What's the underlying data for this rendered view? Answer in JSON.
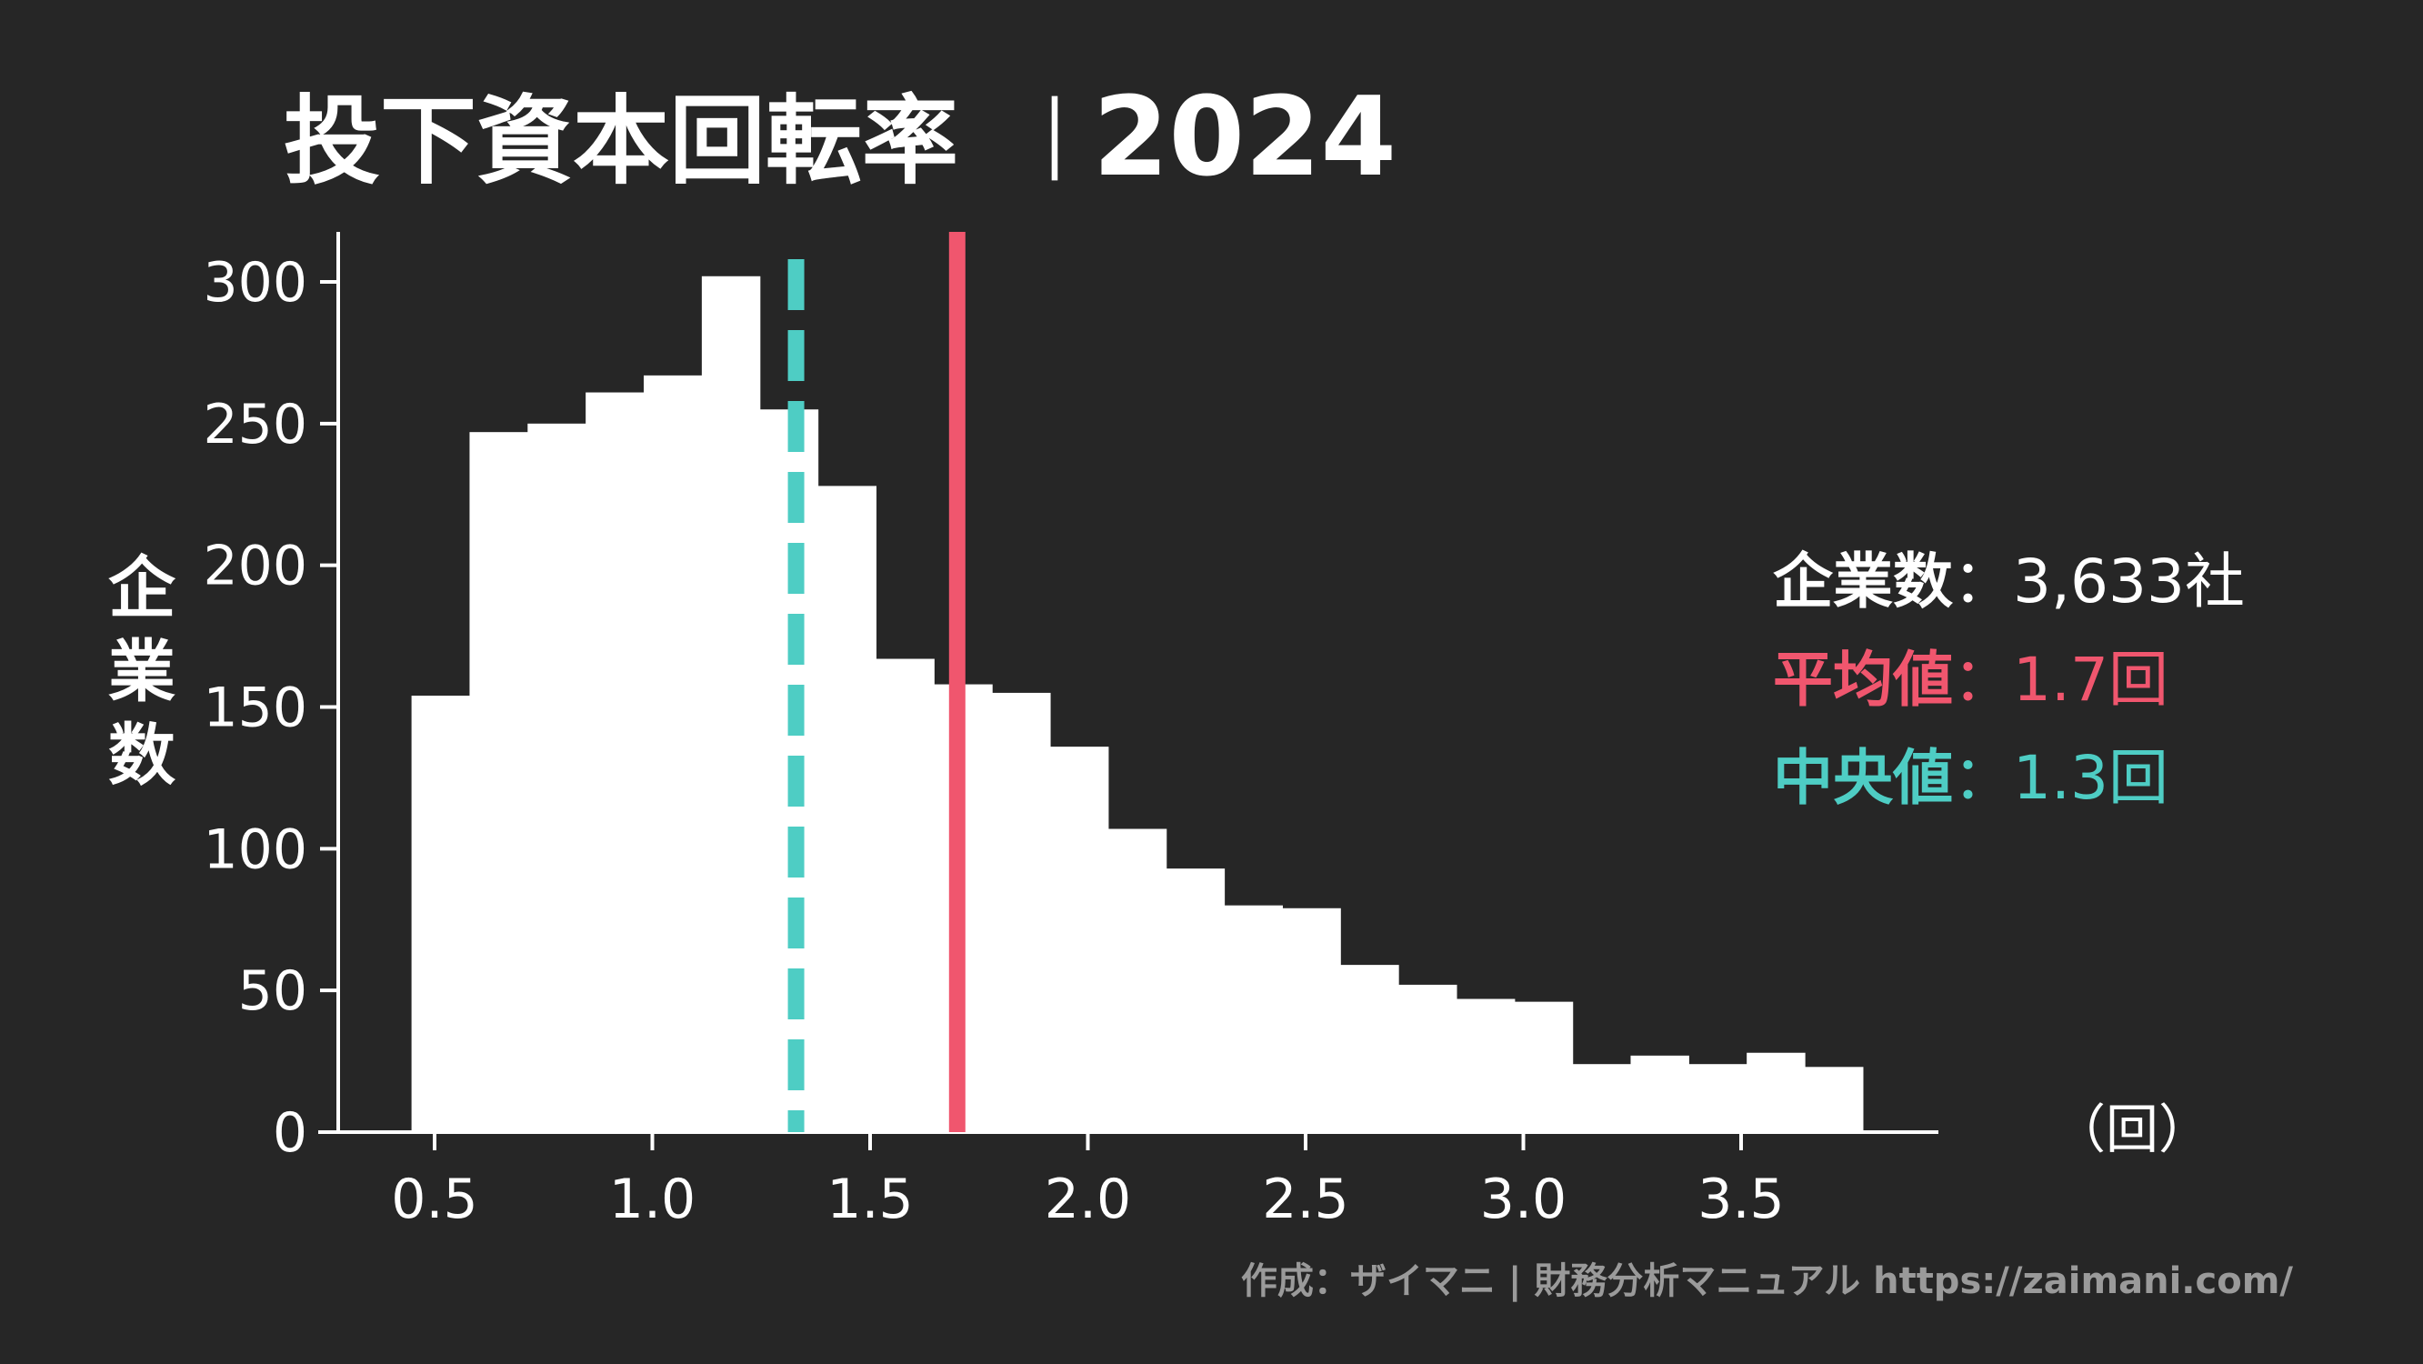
{
  "title": {
    "main": "投下資本回転率",
    "separator": "｜",
    "year": "2024"
  },
  "stats": {
    "count_label": "企業数",
    "count_value": "：3,633社",
    "mean_label": "平均値",
    "mean_value": "：1.7回",
    "median_label": "中央値",
    "median_value": "：1.3回"
  },
  "footer": {
    "credit": "作成：ザイマニ | 財務分析マニュアル https://zaimani.com/"
  },
  "colors": {
    "background": "#262626",
    "bars": "#ffffff",
    "axis": "#ffffff",
    "mean": "#f0566e",
    "median": "#4ecdc4",
    "footer": "#9a9a9a"
  },
  "chart_data": {
    "type": "bar",
    "title": "投下資本回転率｜2024",
    "xlabel": "（回）",
    "ylabel": "企業数",
    "xlim": [
      0.26,
      3.85
    ],
    "ylim": [
      0,
      316
    ],
    "x_ticks": [
      0.5,
      1.0,
      1.5,
      2.0,
      2.5,
      3.0,
      3.5
    ],
    "x_tick_labels": [
      "0.5",
      "1.0",
      "1.5",
      "2.0",
      "2.5",
      "3.0",
      "3.5"
    ],
    "y_ticks": [
      0,
      50,
      100,
      150,
      200,
      250,
      300
    ],
    "y_tick_labels": [
      "0",
      "50",
      "100",
      "150",
      "200",
      "250",
      "300"
    ],
    "bin_width": 0.1333,
    "bin_start": 0.447,
    "values": [
      154,
      247,
      250,
      261,
      267,
      302,
      255,
      228,
      167,
      158,
      155,
      136,
      107,
      93,
      80,
      79,
      59,
      52,
      47,
      46,
      24,
      27,
      24,
      28,
      23
    ],
    "reference_lines": [
      {
        "name": "平均値",
        "x": 1.7,
        "style": "solid",
        "color": "#f0566e"
      },
      {
        "name": "中央値",
        "x": 1.33,
        "style": "dashed",
        "color": "#4ecdc4"
      }
    ],
    "grid": false,
    "legend": "right"
  }
}
